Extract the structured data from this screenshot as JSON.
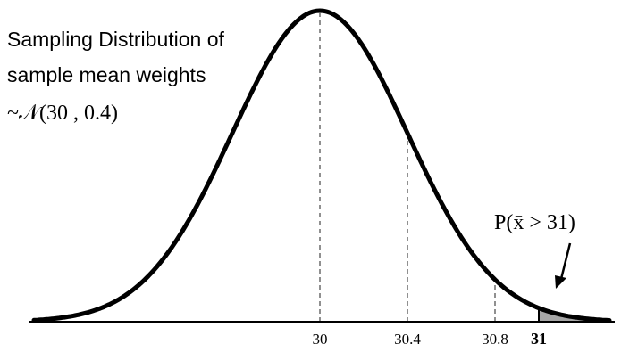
{
  "title": {
    "line1": "Sampling Distribution of",
    "line2": "sample mean weights",
    "line3": "~𝒩(30 , 0.4)"
  },
  "probability_label": "P(x̄ > 31)",
  "distribution": {
    "mean": 30,
    "sd": 0.4,
    "x_range": [
      28.7,
      31.7
    ],
    "shaded_from": 31
  },
  "ticks": [
    {
      "value": 30,
      "label": "30",
      "bold": false,
      "dashed": true
    },
    {
      "value": 30.4,
      "label": "30.4",
      "bold": false,
      "dashed": true
    },
    {
      "value": 30.8,
      "label": "30.8",
      "bold": false,
      "dashed": true
    },
    {
      "value": 31,
      "label": "31",
      "bold": true,
      "dashed": false
    }
  ],
  "colors": {
    "curve": "#000000",
    "shade": "#a6a6a6",
    "dash": "#555555"
  }
}
